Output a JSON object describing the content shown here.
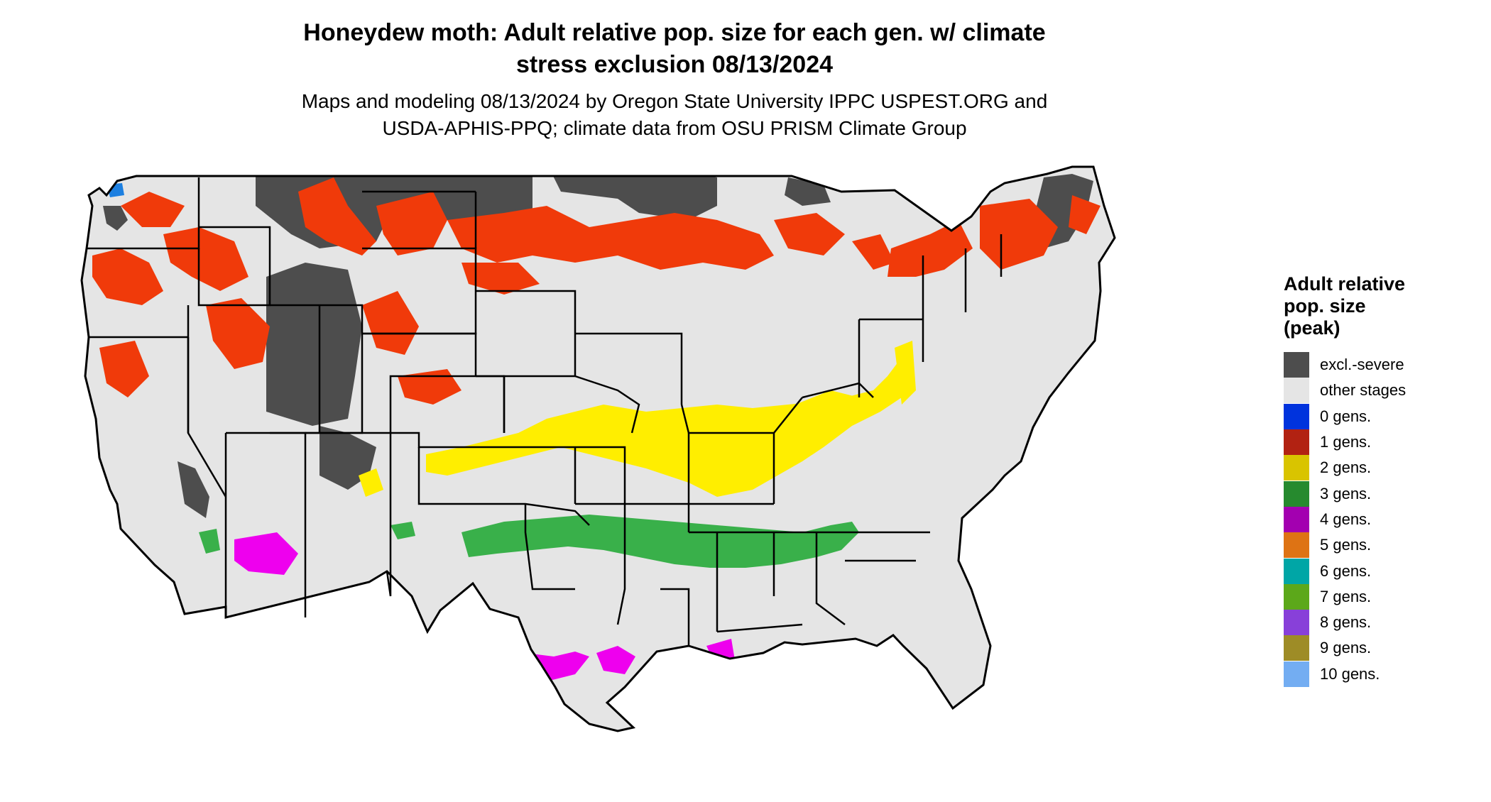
{
  "title_line1": "Honeydew moth: Adult relative pop. size for each gen. w/ climate",
  "title_line2": "stress exclusion 08/13/2024",
  "subtitle_line1": "Maps and modeling 08/13/2024 by Oregon State University IPPC USPEST.ORG and",
  "subtitle_line2": "USDA-APHIS-PPQ; climate data from OSU PRISM Climate Group",
  "legend": {
    "title_lines": [
      "Adult relative",
      "pop. size",
      "(peak)"
    ],
    "items": [
      {
        "label": "excl.-severe",
        "color": "#4d4d4d"
      },
      {
        "label": "other stages",
        "color": "#e5e5e5"
      },
      {
        "label": "0 gens.",
        "color": "#0033dd"
      },
      {
        "label": "1 gens.",
        "color": "#b22212"
      },
      {
        "label": "2 gens.",
        "color": "#d9c400"
      },
      {
        "label": "3 gens.",
        "color": "#268a2e"
      },
      {
        "label": "4 gens.",
        "color": "#a300b0"
      },
      {
        "label": "5 gens.",
        "color": "#de7314"
      },
      {
        "label": "6 gens.",
        "color": "#00a6a6"
      },
      {
        "label": "7 gens.",
        "color": "#5ca81a"
      },
      {
        "label": "8 gens.",
        "color": "#8840d9"
      },
      {
        "label": "9 gens.",
        "color": "#9e8c26"
      },
      {
        "label": "10 gens.",
        "color": "#73adf2"
      }
    ]
  },
  "map_colors": {
    "background": "#e5e5e5",
    "border": "#000000",
    "excluded": "#4d4d4d",
    "gen1": "#f03a0a",
    "gen2": "#ffee00",
    "gen3": "#39b04a",
    "gen4": "#ee00ee",
    "gen5": "#ef8a2e",
    "gen10": "#1c7fe0"
  }
}
